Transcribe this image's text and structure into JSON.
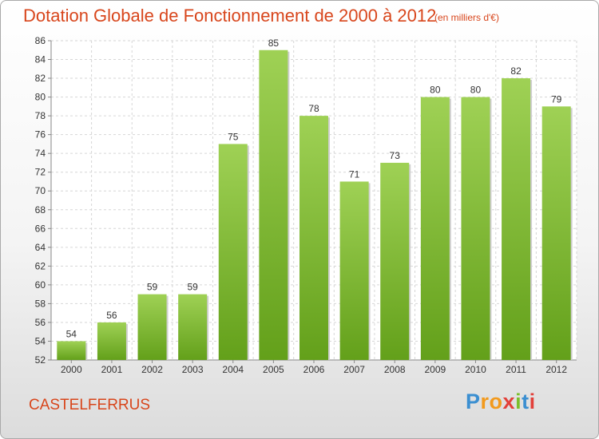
{
  "title": "Dotation Globale de Fonctionnement de 2000 à 2012",
  "subtitle": "(en milliers d'€)",
  "commune": "CASTELFERRUS",
  "logo": {
    "letters": [
      "P",
      "r",
      "o",
      "x",
      "i",
      "t",
      "i"
    ],
    "colors": [
      "#3b8fd1",
      "#f29a1d",
      "#f29a1d",
      "#e2403a",
      "#7bbf2b",
      "#3b8fd1",
      "#e2403a"
    ]
  },
  "chart_data": {
    "type": "bar",
    "categories": [
      "2000",
      "2001",
      "2002",
      "2003",
      "2004",
      "2005",
      "2006",
      "2007",
      "2008",
      "2009",
      "2010",
      "2011",
      "2012"
    ],
    "values": [
      54,
      56,
      59,
      59,
      75,
      85,
      78,
      71,
      73,
      80,
      80,
      82,
      79
    ],
    "ylim": [
      52,
      86
    ],
    "yticks": [
      52,
      54,
      56,
      58,
      60,
      62,
      64,
      66,
      68,
      70,
      72,
      74,
      76,
      78,
      80,
      82,
      84,
      86
    ],
    "grid": true,
    "bar_color_top": "#9fd155",
    "bar_color_bottom": "#63a01a"
  }
}
